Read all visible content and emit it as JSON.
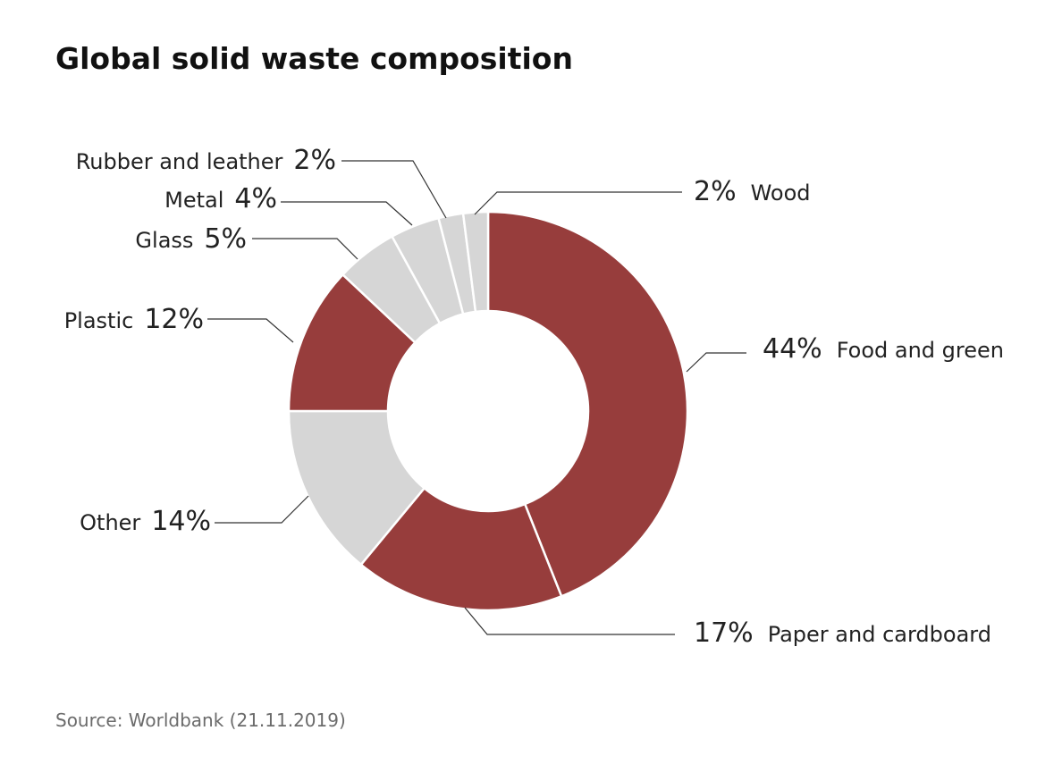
{
  "title": "Global solid waste composition",
  "source": "Source: Worldbank (21.11.2019)",
  "colors": {
    "dark": "#973d3c",
    "light": "#d6d6d6"
  },
  "chart_data": {
    "type": "pie",
    "style": "donut",
    "title": "Global solid waste composition",
    "unit": "%",
    "slices": [
      {
        "label": "Food and green",
        "value": 44,
        "pct_label": "44%",
        "color": "#973d3c"
      },
      {
        "label": "Paper and cardboard",
        "value": 17,
        "pct_label": "17%",
        "color": "#973d3c"
      },
      {
        "label": "Other",
        "value": 14,
        "pct_label": "14%",
        "color": "#d6d6d6"
      },
      {
        "label": "Plastic",
        "value": 12,
        "pct_label": "12%",
        "color": "#973d3c"
      },
      {
        "label": "Glass",
        "value": 5,
        "pct_label": "5%",
        "color": "#d6d6d6"
      },
      {
        "label": "Metal",
        "value": 4,
        "pct_label": "4%",
        "color": "#d6d6d6"
      },
      {
        "label": "Rubber and leather",
        "value": 2,
        "pct_label": "2%",
        "color": "#d6d6d6"
      },
      {
        "label": "Wood",
        "value": 2,
        "pct_label": "2%",
        "color": "#d6d6d6"
      }
    ]
  }
}
